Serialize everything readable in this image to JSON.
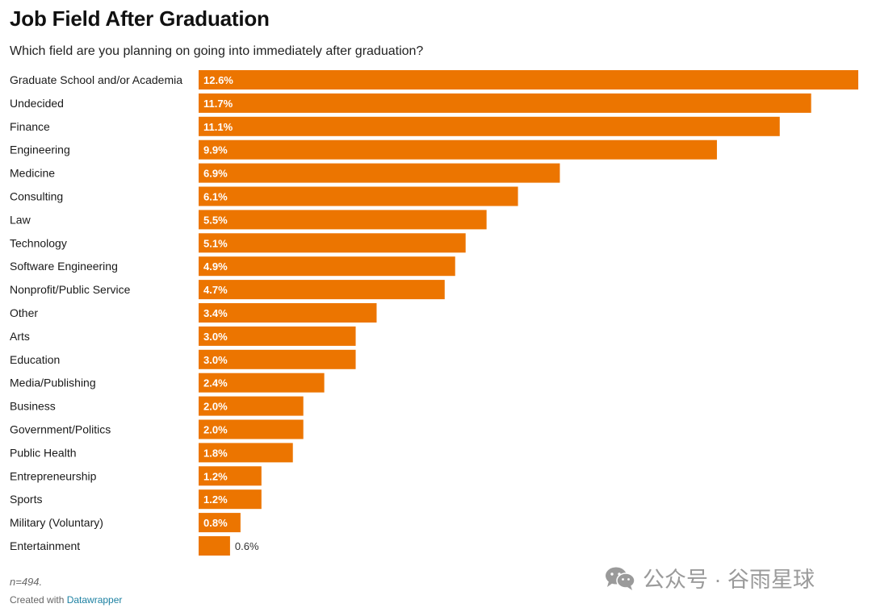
{
  "title": "Job Field After Graduation",
  "subtitle": "Which field are you planning on going into immediately after graduation?",
  "footnote": "n=494.",
  "credit": {
    "prefix": "Created with ",
    "link": "Datawrapper"
  },
  "watermark": {
    "icon": "wechat-icon",
    "text": "公众号 · 谷雨星球"
  },
  "colors": {
    "bar": "#ec7500",
    "bar_label_inside": "#ffffff",
    "bar_label_outside": "#333333",
    "text": "#1a1a1a"
  },
  "chart_data": {
    "type": "bar",
    "orientation": "horizontal",
    "unit": "%",
    "categories": [
      "Graduate School and/or Academia",
      "Undecided",
      "Finance",
      "Engineering",
      "Medicine",
      "Consulting",
      "Law",
      "Technology",
      "Software Engineering",
      "Nonprofit/Public Service",
      "Other",
      "Arts",
      "Education",
      "Media/Publishing",
      "Business",
      "Government/Politics",
      "Public Health",
      "Entrepreneurship",
      "Sports",
      "Military (Voluntary)",
      "Entertainment"
    ],
    "values": [
      12.6,
      11.7,
      11.1,
      9.9,
      6.9,
      6.1,
      5.5,
      5.1,
      4.9,
      4.7,
      3.4,
      3.0,
      3.0,
      2.4,
      2.0,
      2.0,
      1.8,
      1.2,
      1.2,
      0.8,
      0.6
    ],
    "labels": [
      "12.6%",
      "11.7%",
      "11.1%",
      "9.9%",
      "6.9%",
      "6.1%",
      "5.5%",
      "5.1%",
      "4.9%",
      "4.7%",
      "3.4%",
      "3.0%",
      "3.0%",
      "2.4%",
      "2.0%",
      "2.0%",
      "1.8%",
      "1.2%",
      "1.2%",
      "0.8%",
      "0.6%"
    ],
    "xlim": [
      0,
      12.6
    ],
    "grid": false,
    "legend": false
  }
}
